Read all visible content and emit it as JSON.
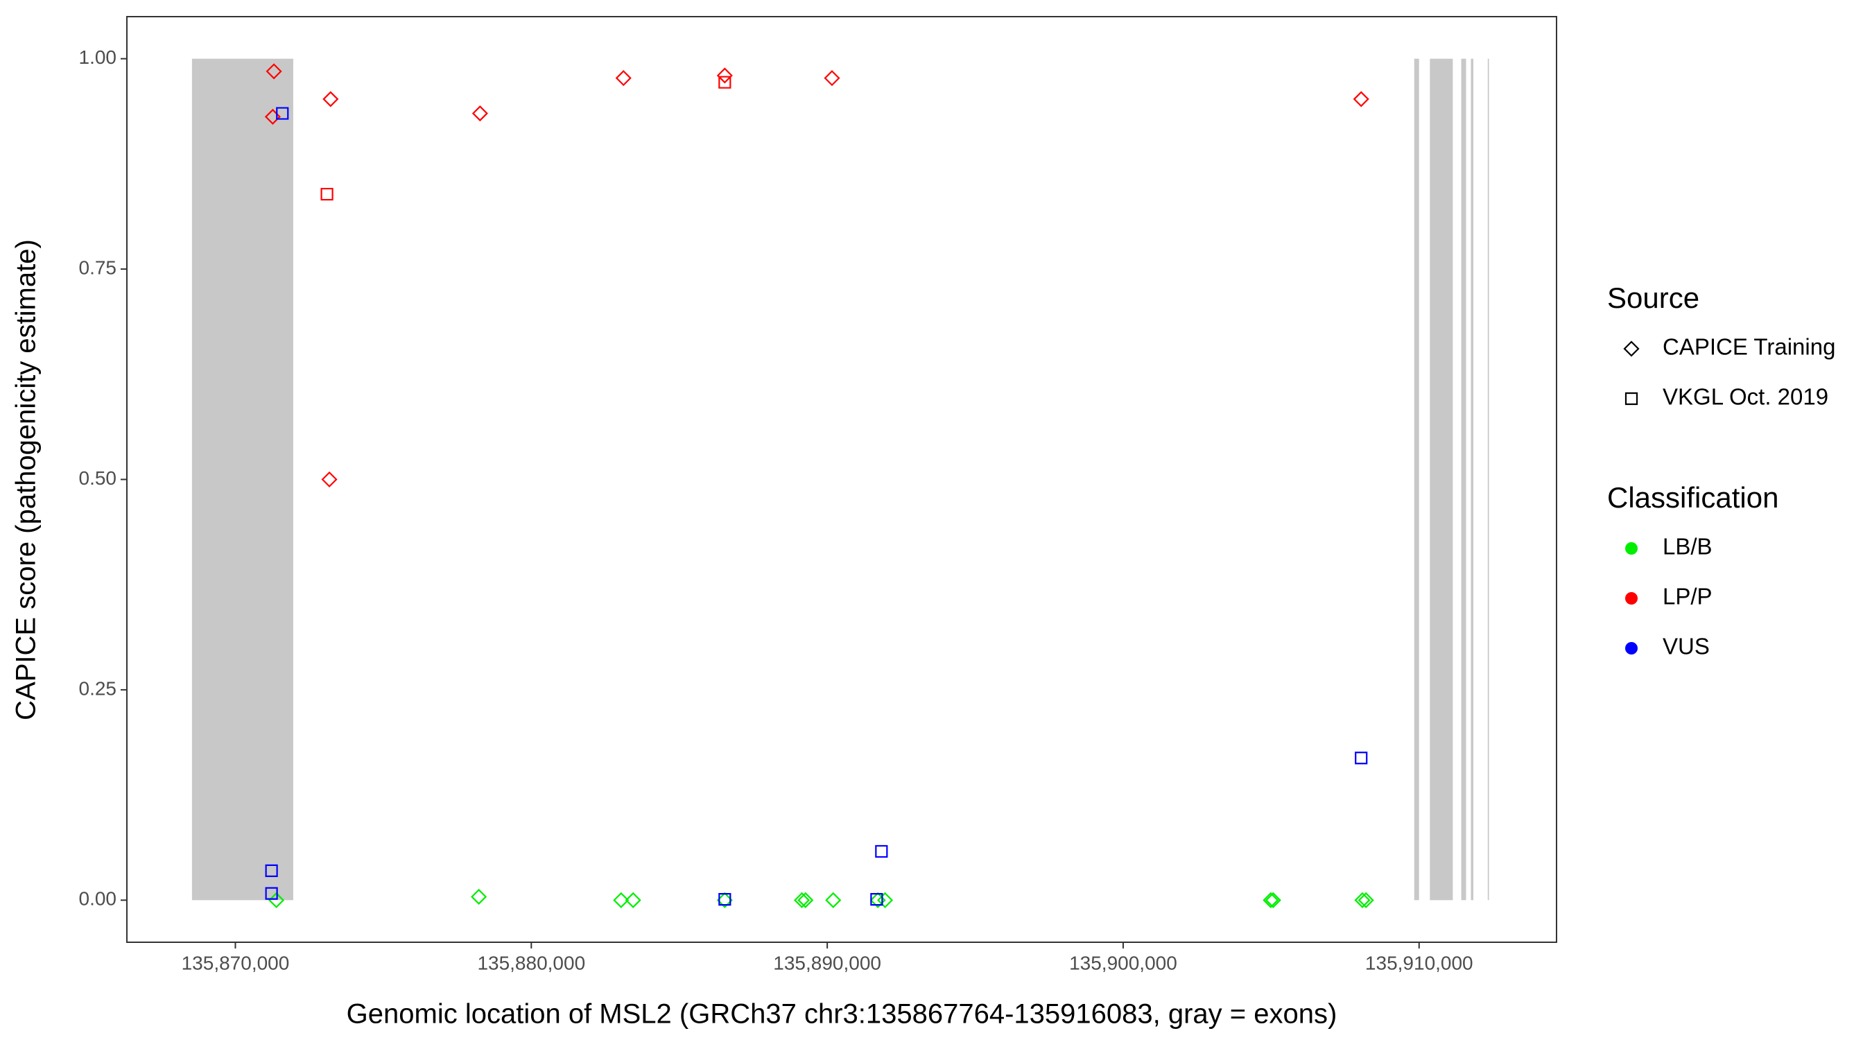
{
  "chart_data": {
    "type": "scatter",
    "x_label": "Genomic location of MSL2 (GRCh37 chr3:135867764-135916083, gray = exons)",
    "y_label": "CAPICE score (pathogenicity estimate)",
    "xlim": [
      135866334,
      135914644
    ],
    "ylim": [
      -0.05,
      1.05
    ],
    "xticks": [
      {
        "value": 135870000,
        "label": "135,870,000"
      },
      {
        "value": 135880000,
        "label": "135,880,000"
      },
      {
        "value": 135890000,
        "label": "135,890,000"
      },
      {
        "value": 135900000,
        "label": "135,900,000"
      },
      {
        "value": 135910000,
        "label": "135,910,000"
      }
    ],
    "yticks": [
      {
        "value": 0,
        "label": "0.00"
      },
      {
        "value": 0.25,
        "label": "0.25"
      },
      {
        "value": 0.5,
        "label": "0.50"
      },
      {
        "value": 0.75,
        "label": "0.75"
      },
      {
        "value": 1,
        "label": "1.00"
      }
    ],
    "grid": false,
    "exon_color": "#c8c8c8",
    "exons": [
      [
        135868534,
        135871956
      ],
      [
        135909835,
        135909998
      ],
      [
        135910365,
        135911139
      ],
      [
        135911424,
        135911587
      ],
      [
        135911750,
        135911832
      ],
      [
        135912320,
        135912360
      ]
    ],
    "legends": [
      {
        "title": "Source",
        "entries": [
          {
            "label": "CAPICE Training",
            "shape": "diamond"
          },
          {
            "label": "VKGL Oct. 2019",
            "shape": "square"
          }
        ]
      },
      {
        "title": "Classification",
        "entries": [
          {
            "label": "LB/B",
            "color": "#00ee00"
          },
          {
            "label": "LP/P",
            "color": "#ff0000"
          },
          {
            "label": "VUS",
            "color": "#0000ff"
          }
        ]
      }
    ],
    "series": [
      {
        "shape": "diamond",
        "color": "#00ee00",
        "x": [
          135871385,
          135878227,
          135883034,
          135883441,
          135886537,
          135889143,
          135889265,
          135890202,
          135891710,
          135891954,
          135904987,
          135905069,
          135908083,
          135908205
        ],
        "values": [
          0,
          0.004,
          0,
          0,
          0,
          0,
          0,
          0,
          0,
          0,
          0,
          0,
          0,
          0
        ]
      },
      {
        "shape": "diamond",
        "color": "#ff0000",
        "x": [
          135871303,
          135871263,
          135873218,
          135873177,
          135878268,
          135883115,
          135886537,
          135890161,
          135908042
        ],
        "values": [
          0.985,
          0.931,
          0.952,
          0.5,
          0.935,
          0.977,
          0.98,
          0.977,
          0.952
        ]
      },
      {
        "shape": "square",
        "color": "#ff0000",
        "x": [
          135873095,
          135886537
        ],
        "values": [
          0.839,
          0.972
        ]
      },
      {
        "shape": "square",
        "color": "#0000ff",
        "x": [
          135871588,
          135871222,
          135871222,
          135886537,
          135891669,
          135891832,
          135908042
        ],
        "values": [
          0.935,
          0.035,
          0.008,
          0.001,
          0.001,
          0.058,
          0.169
        ]
      }
    ]
  }
}
